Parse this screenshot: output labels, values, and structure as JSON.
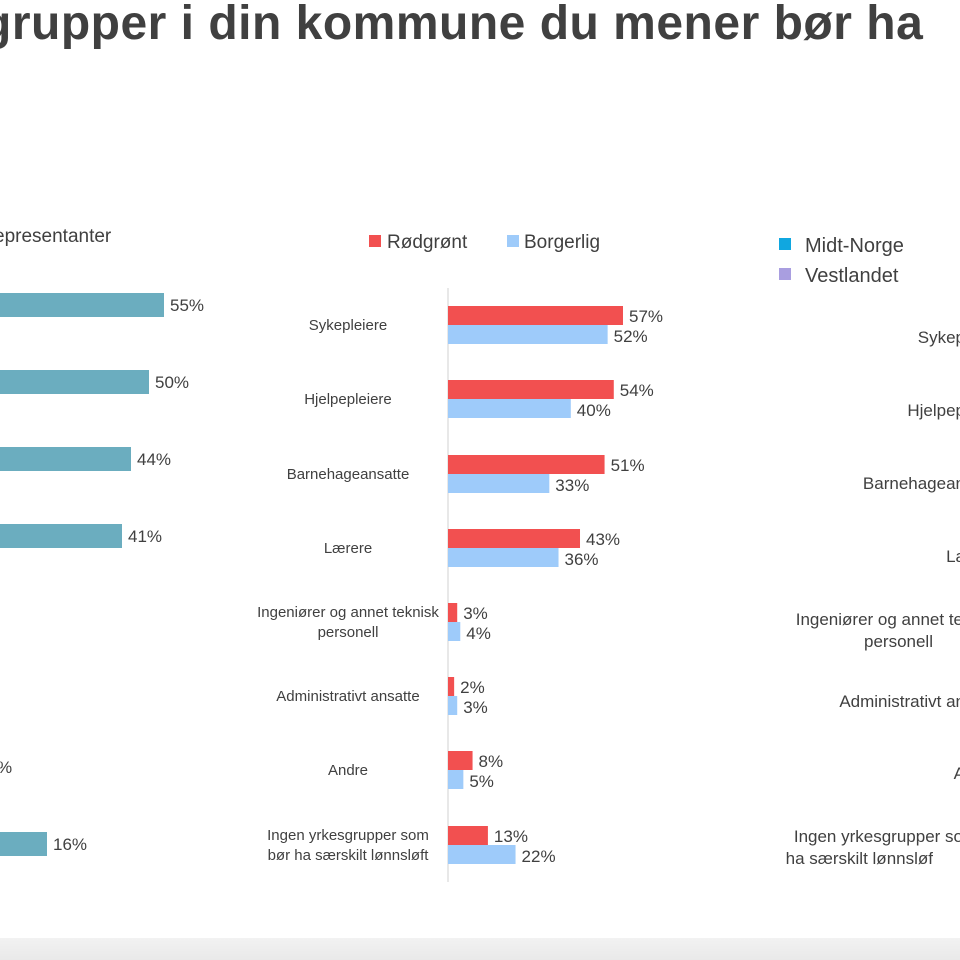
{
  "title": "grupper i din kommune du mener bør ha ",
  "colors": {
    "teal": "#6badbf",
    "rodgront": "#f25050",
    "borgerlig": "#9ecbfa",
    "midtnorge": "#10a7e0",
    "vestlandet": "#a99ee0",
    "axis": "#d0d0d0",
    "text": "#404040"
  },
  "chart_data": [
    {
      "type": "bar",
      "orientation": "horizontal",
      "legend": "epresentanter",
      "series": [
        {
          "name": "epresentanter",
          "values": [
            55,
            50,
            44,
            41,
            null,
            null,
            null,
            16
          ]
        }
      ],
      "value_labels": [
        "55%",
        "50%",
        "44%",
        "41%",
        "",
        "",
        "%",
        "16%"
      ],
      "xlim": [
        0,
        100
      ]
    },
    {
      "type": "bar",
      "orientation": "horizontal",
      "categories": [
        "Sykepleiere",
        "Hjelpepleiere",
        "Barnehageansatte",
        "Lærere",
        "Ingeniører og annet teknisk personell",
        "Administrativt ansatte",
        "Andre",
        "Ingen yrkesgrupper som bør ha særskilt lønnsløft"
      ],
      "category_lines": [
        [
          "Sykepleiere"
        ],
        [
          "Hjelpepleiere"
        ],
        [
          "Barnehageansatte"
        ],
        [
          "Lærere"
        ],
        [
          "Ingeniører og annet teknisk",
          "personell"
        ],
        [
          "Administrativt ansatte"
        ],
        [
          "Andre"
        ],
        [
          "Ingen yrkesgrupper som",
          "bør ha særskilt lønnsløft"
        ]
      ],
      "series": [
        {
          "name": "Rødgrønt",
          "values": [
            57,
            54,
            51,
            43,
            3,
            2,
            8,
            13
          ]
        },
        {
          "name": "Borgerlig",
          "values": [
            52,
            40,
            33,
            36,
            4,
            3,
            5,
            22
          ]
        }
      ],
      "legend": [
        "Rødgrønt",
        "Borgerlig"
      ],
      "xlim": [
        0,
        100
      ]
    },
    {
      "type": "bar",
      "orientation": "horizontal",
      "legend": [
        "Midt-Norge",
        "Vestlandet"
      ],
      "category_lines": [
        [
          "Sykep"
        ],
        [
          "Hjelpep"
        ],
        [
          "Barnehagean"
        ],
        [
          "La"
        ],
        [
          "Ingeniører og annet te",
          "personell"
        ],
        [
          "Administrativt an"
        ],
        [
          "A"
        ],
        [
          "Ingen yrkesgrupper so",
          "ha særskilt lønnsløf"
        ]
      ]
    }
  ]
}
